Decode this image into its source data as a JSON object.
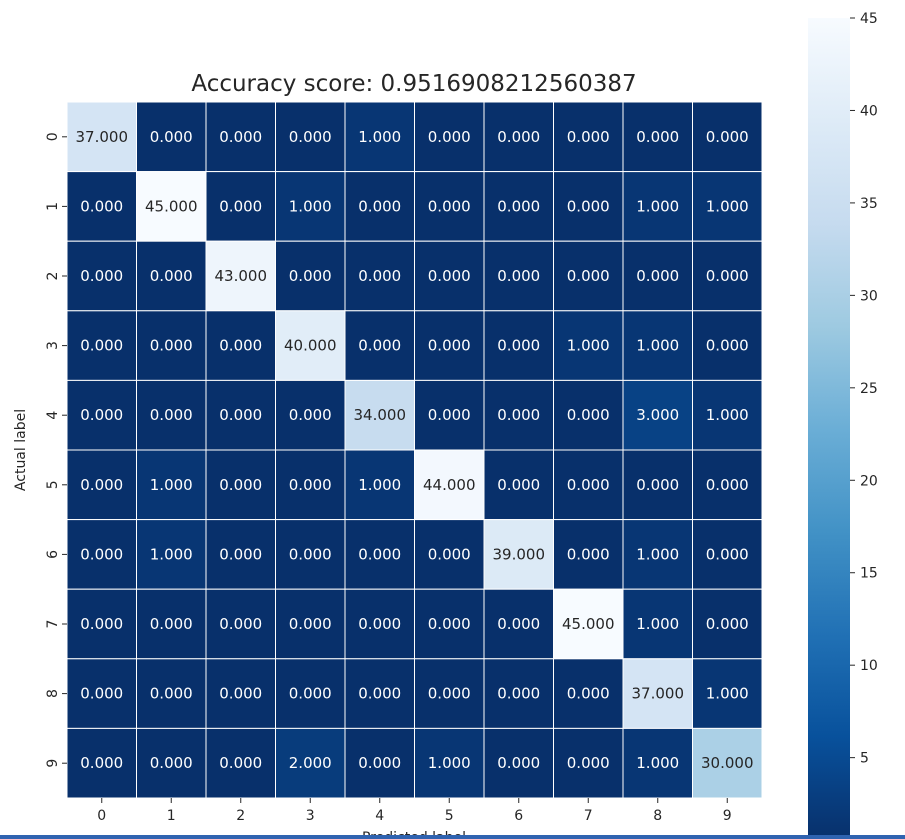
{
  "chart_data": {
    "type": "heatmap",
    "title": "Accuracy score: 0.9516908212560387",
    "xlabel": "Predicted label",
    "ylabel": "Actual label",
    "x_ticks": [
      "0",
      "1",
      "2",
      "3",
      "4",
      "5",
      "6",
      "7",
      "8",
      "9"
    ],
    "y_ticks": [
      "0",
      "1",
      "2",
      "3",
      "4",
      "5",
      "6",
      "7",
      "8",
      "9"
    ],
    "matrix": [
      [
        37,
        0,
        0,
        0,
        1,
        0,
        0,
        0,
        0,
        0
      ],
      [
        0,
        45,
        0,
        1,
        0,
        0,
        0,
        0,
        1,
        1
      ],
      [
        0,
        0,
        43,
        0,
        0,
        0,
        0,
        0,
        0,
        0
      ],
      [
        0,
        0,
        0,
        40,
        0,
        0,
        0,
        1,
        1,
        0
      ],
      [
        0,
        0,
        0,
        0,
        34,
        0,
        0,
        0,
        3,
        1
      ],
      [
        0,
        1,
        0,
        0,
        1,
        44,
        0,
        0,
        0,
        0
      ],
      [
        0,
        1,
        0,
        0,
        0,
        0,
        39,
        0,
        1,
        0
      ],
      [
        0,
        0,
        0,
        0,
        0,
        0,
        0,
        45,
        1,
        0
      ],
      [
        0,
        0,
        0,
        0,
        0,
        0,
        0,
        0,
        37,
        1
      ],
      [
        0,
        0,
        0,
        2,
        0,
        1,
        0,
        0,
        1,
        30
      ]
    ],
    "value_format": "3 decimals",
    "colormap": "Blues_r",
    "vmin": 0,
    "vmax": 45,
    "colorbar_ticks": [
      5,
      10,
      15,
      20,
      25,
      30,
      35,
      40,
      45
    ],
    "grid": false,
    "cell_borders": true
  },
  "colors": {
    "cmap_low": "#08306b",
    "cmap_high": "#f7fbff",
    "cell_border": "#ffffff",
    "dark_text": "#262626",
    "light_text": "#ffffff",
    "bottom_bar": "#2f63b0"
  }
}
